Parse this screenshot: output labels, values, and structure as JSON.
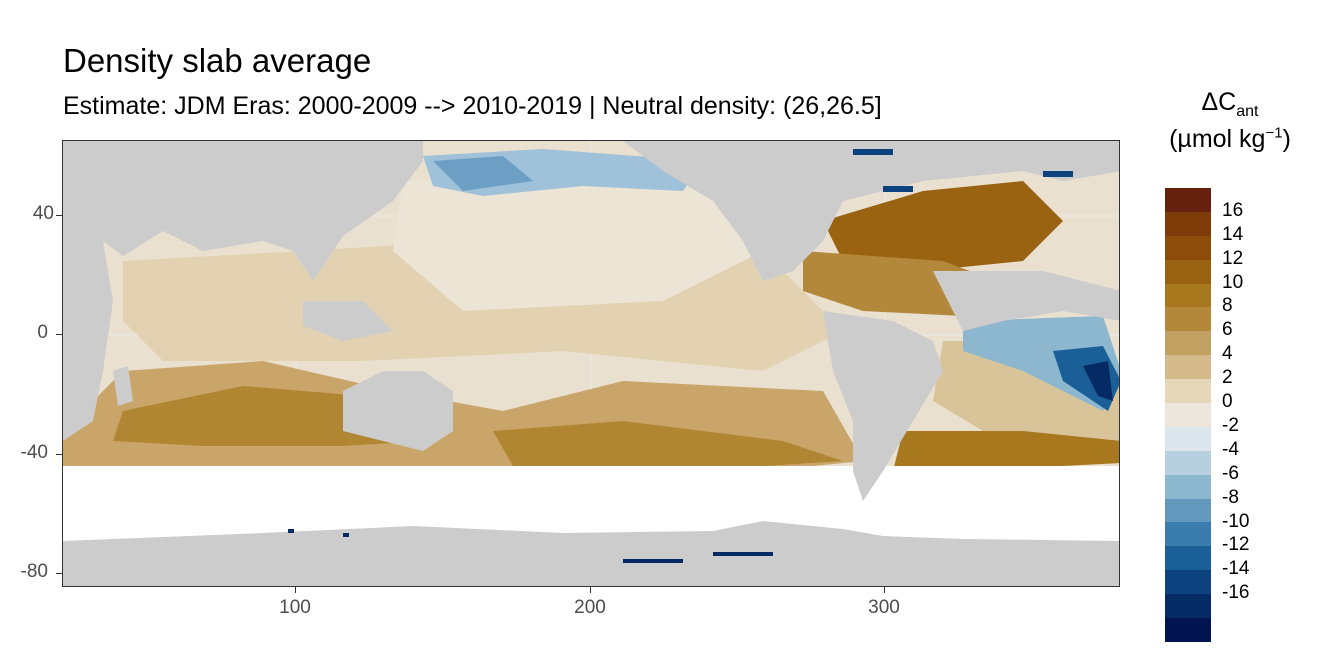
{
  "title": "Density slab average",
  "subtitle": "Estimate: JDM Eras: 2000-2009 --> 2010-2019 | Neutral density: (26,26.5]",
  "legend": {
    "title_main": "ΔC",
    "title_sub": "ant",
    "unit_prefix": "(µmol kg",
    "unit_sup": "−1",
    "unit_suffix": ")",
    "colors": [
      "#67220f",
      "#7f3b08",
      "#8c4d0b",
      "#9a6312",
      "#a8781f",
      "#b3883a",
      "#c2a062",
      "#d4b98b",
      "#e6d7b8",
      "#ede6dc",
      "#dde6ec",
      "#b7cfdf",
      "#8db6cf",
      "#6399bd",
      "#3a7cad",
      "#1b5f98",
      "#0c437f",
      "#052a64",
      "#021551"
    ],
    "labels": [
      "16",
      "14",
      "12",
      "10",
      "8",
      "6",
      "4",
      "2",
      "0",
      "-2",
      "-4",
      "-6",
      "-8",
      "-10",
      "-12",
      "-14",
      "-16"
    ]
  },
  "axes": {
    "y_ticks": [
      "40",
      "0",
      "-40",
      "-80"
    ],
    "x_ticks": [
      "100",
      "200",
      "300"
    ]
  },
  "map": {
    "lon_range": [
      20,
      380
    ],
    "lat_range": [
      -85,
      65
    ],
    "land_color": "#cccccc",
    "nodata_color": "#ffffff"
  }
}
